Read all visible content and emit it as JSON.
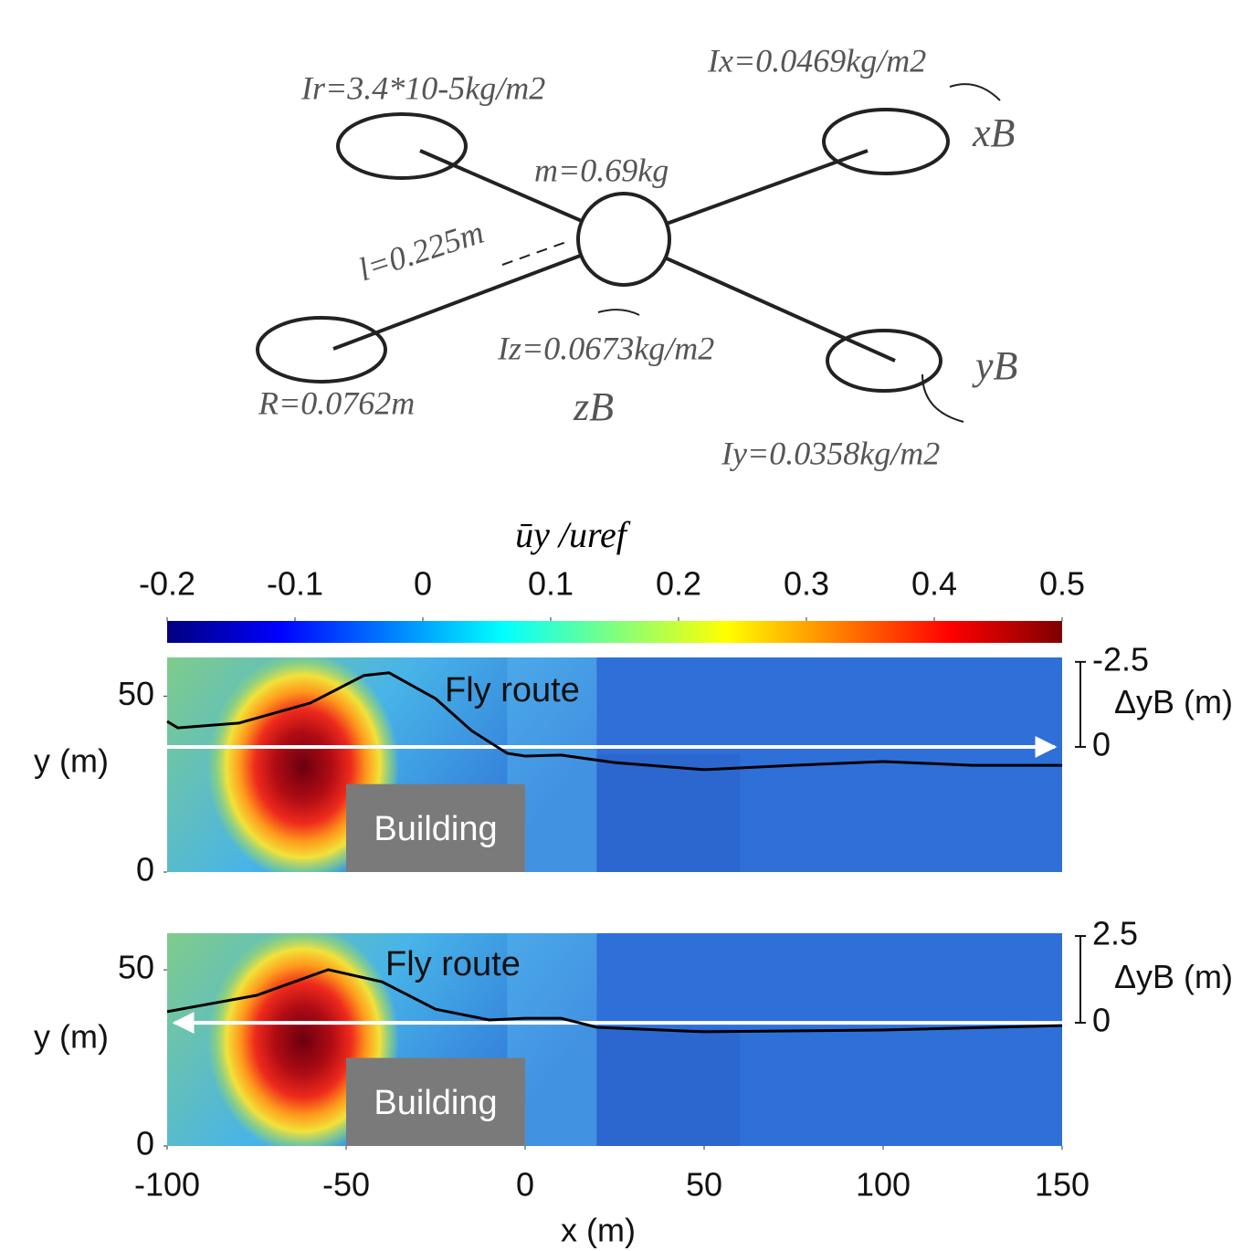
{
  "diagram": {
    "labels": {
      "Ir": "Ir=3.4*10-5kg/m2",
      "Ix": "Ix=0.0469kg/m2",
      "m": "m=0.69kg",
      "l": "l=0.225m",
      "Iz": "Iz=0.0673kg/m2",
      "R": "R=0.0762m",
      "Iy": "Iy=0.0358kg/m2",
      "xB": "xB",
      "yB": "yB",
      "zB": "zB"
    }
  },
  "colorbar": {
    "label": "ūy /uref",
    "colormap": "jet",
    "lim": [
      -0.2,
      0.5
    ],
    "ticks": [
      -0.2,
      -0.1,
      0,
      0.1,
      0.2,
      0.3,
      0.4,
      0.5
    ]
  },
  "chart_data": [
    {
      "type": "line",
      "xlim": [
        -100,
        150
      ],
      "ylim": [
        0,
        61
      ],
      "yticks": [
        0,
        50
      ],
      "ylabel": "y (m)",
      "y2lim": [
        3.68,
        -2.63
      ],
      "y2ticks": [
        -2.5,
        0
      ],
      "y2label": "ΔyB (m)",
      "arrow": "right",
      "annotation": "Fly route",
      "building": {
        "label": "Building",
        "x0": -50,
        "x1": 0,
        "height": 25
      },
      "series": [
        {
          "color": "#000000",
          "axis": "y2",
          "x": [
            -100,
            -97,
            -80,
            -60,
            -45,
            -38,
            -25,
            -15,
            -5,
            0,
            10,
            25,
            50,
            75,
            100,
            125,
            150
          ],
          "values": [
            -0.75,
            -0.56,
            -0.7,
            -1.29,
            -2.1,
            -2.18,
            -1.42,
            -0.48,
            0.19,
            0.27,
            0.24,
            0.46,
            0.67,
            0.54,
            0.43,
            0.54,
            0.54
          ]
        }
      ]
    },
    {
      "type": "line",
      "xlim": [
        -100,
        150
      ],
      "xticks": [
        -100,
        -50,
        0,
        50,
        100,
        150
      ],
      "xlabel": "x (m)",
      "ylim": [
        0,
        60.4
      ],
      "yticks": [
        0,
        50
      ],
      "ylabel": "y (m)",
      "y2lim": [
        -3.55,
        2.58
      ],
      "y2ticks": [
        2.5,
        0
      ],
      "y2label": "ΔyB (m)",
      "arrow": "left",
      "annotation": "Fly route",
      "building": {
        "label": "Building",
        "x0": -50,
        "x1": 0,
        "height": 25
      },
      "series": [
        {
          "color": "#000000",
          "axis": "y2",
          "x": [
            -100,
            -75,
            -55,
            -40,
            -25,
            -10,
            0,
            10,
            20,
            50,
            100,
            150
          ],
          "values": [
            0.32,
            0.79,
            1.53,
            1.18,
            0.39,
            0.08,
            0.13,
            0.13,
            -0.13,
            -0.26,
            -0.21,
            -0.08
          ]
        }
      ]
    }
  ]
}
